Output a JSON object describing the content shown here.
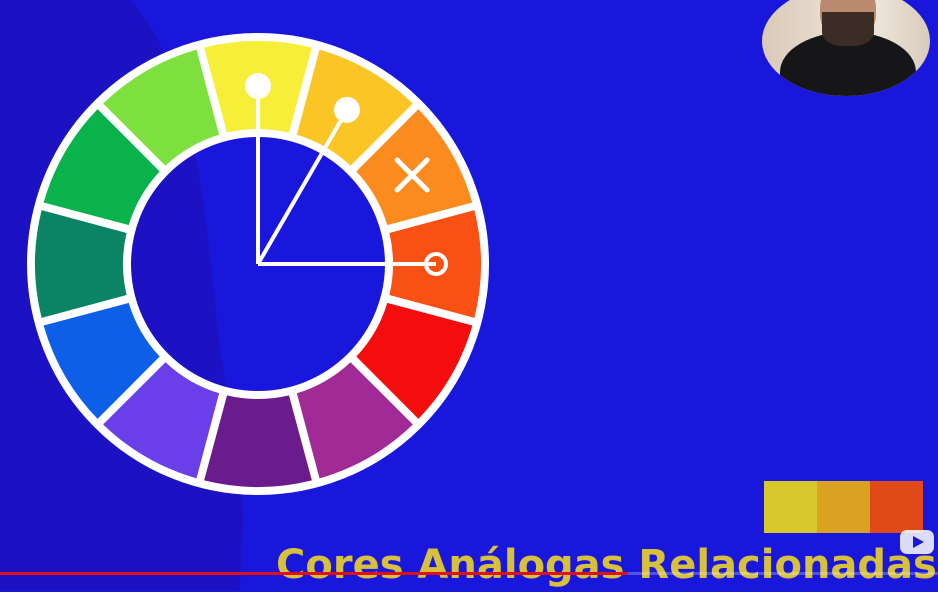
{
  "slide": {
    "title": "Cores Análogas Relacionadas",
    "background_color": "#1a17dc",
    "title_color": "#d6c03c"
  },
  "color_wheel": {
    "segments": [
      {
        "name": "yellow",
        "color": "#f7ee3a"
      },
      {
        "name": "yellow-orange",
        "color": "#fbc526"
      },
      {
        "name": "orange",
        "color": "#fb8b1f"
      },
      {
        "name": "red-orange",
        "color": "#f95014"
      },
      {
        "name": "red",
        "color": "#f50c0c"
      },
      {
        "name": "red-violet",
        "color": "#a02a96"
      },
      {
        "name": "violet",
        "color": "#6a1c8c"
      },
      {
        "name": "blue-violet",
        "color": "#6a3ee8"
      },
      {
        "name": "blue",
        "color": "#0d5fe8"
      },
      {
        "name": "blue-green",
        "color": "#0b8466"
      },
      {
        "name": "green",
        "color": "#09b24a"
      },
      {
        "name": "yellow-green",
        "color": "#7ee03e"
      }
    ],
    "pointers": [
      {
        "segment": 0,
        "marker": "filled"
      },
      {
        "segment": 1,
        "marker": "filled"
      },
      {
        "segment": 3,
        "marker": "ring"
      }
    ],
    "excluded_segment": {
      "segment": 2,
      "marker": "x-icon"
    }
  },
  "palette_swatches": [
    "#d8c82c",
    "#d9a321",
    "#e04a18"
  ],
  "video": {
    "progress_fraction": 0.67,
    "progress_color": "#e0101a"
  },
  "icons": [
    "x-icon",
    "play-logo-icon",
    "webcam-avatar"
  ]
}
